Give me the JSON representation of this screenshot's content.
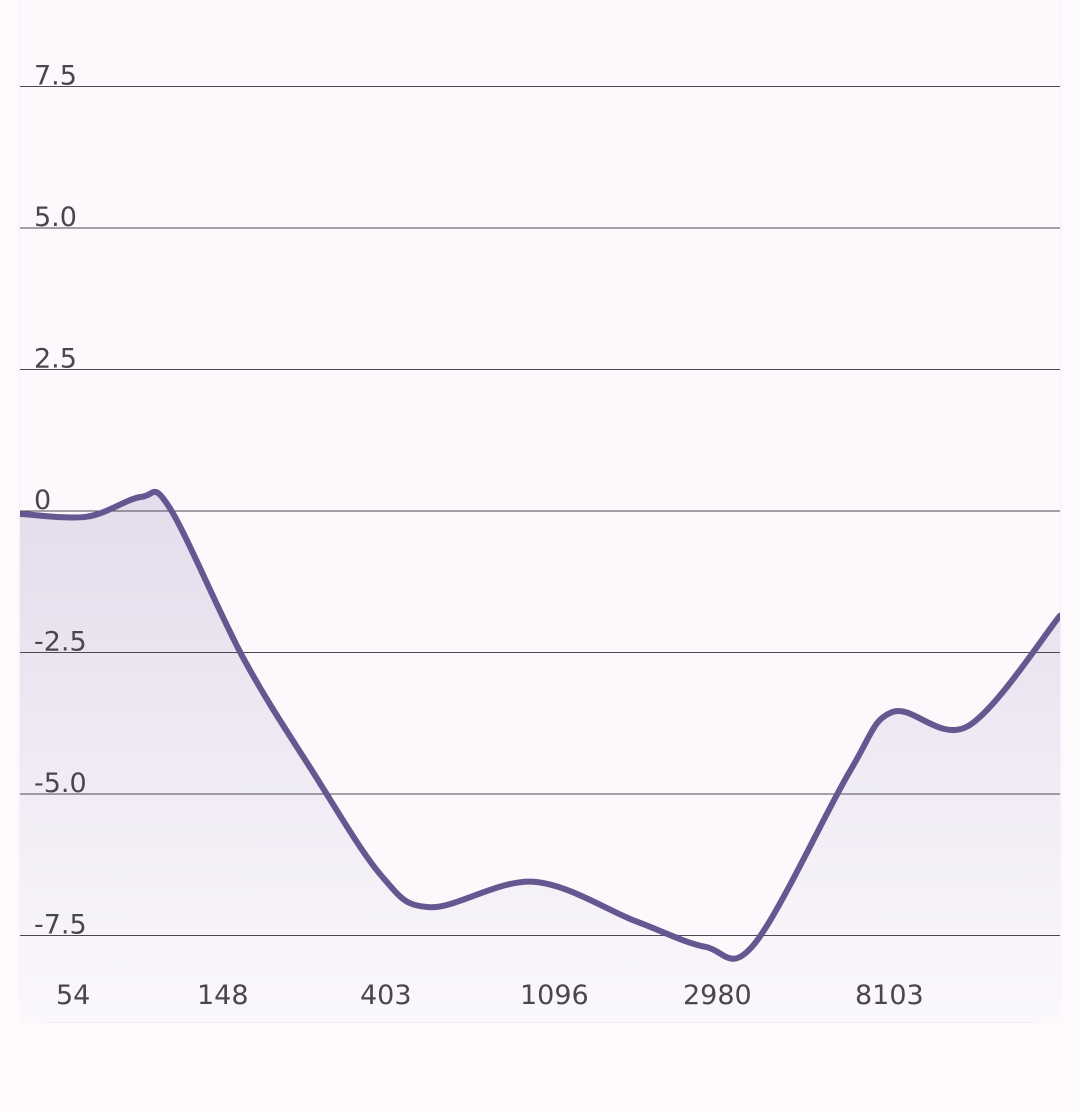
{
  "colors": {
    "line": "#65578f",
    "fill_top": "#e3dcec",
    "fill_bottom": "#fbf8fc",
    "grid": "#4d4852",
    "background": "#fcf8fc"
  },
  "chart_data": {
    "type": "area",
    "x_scale": "log",
    "ylim": [
      -8.0,
      9.0
    ],
    "y_ticks": [
      {
        "value": 7.5,
        "label": "7.5"
      },
      {
        "value": 5.0,
        "label": "5.0"
      },
      {
        "value": 2.5,
        "label": "2.5"
      },
      {
        "value": 0,
        "label": "0"
      },
      {
        "value": -2.5,
        "label": "-2.5"
      },
      {
        "value": -5.0,
        "label": "-5.0"
      },
      {
        "value": -7.5,
        "label": "-7.5"
      }
    ],
    "x_ticks": [
      "54",
      "148",
      "403",
      "1096",
      "2980",
      "8103"
    ],
    "x_tick_values": [
      54,
      148,
      403,
      1096,
      2980,
      8103
    ],
    "xlim": [
      54,
      24000
    ],
    "grid": true,
    "series": [
      {
        "points": [
          {
            "x": 54,
            "y": -0.05
          },
          {
            "x": 80,
            "y": -0.1
          },
          {
            "x": 110,
            "y": 0.25
          },
          {
            "x": 130,
            "y": 0.05
          },
          {
            "x": 200,
            "y": -2.6
          },
          {
            "x": 300,
            "y": -4.6
          },
          {
            "x": 450,
            "y": -6.45
          },
          {
            "x": 600,
            "y": -7.0
          },
          {
            "x": 1096,
            "y": -6.55
          },
          {
            "x": 2000,
            "y": -7.25
          },
          {
            "x": 3000,
            "y": -7.7
          },
          {
            "x": 4000,
            "y": -7.65
          },
          {
            "x": 7000,
            "y": -4.6
          },
          {
            "x": 9000,
            "y": -3.55
          },
          {
            "x": 14000,
            "y": -3.8
          },
          {
            "x": 24000,
            "y": -1.85
          }
        ]
      }
    ]
  }
}
